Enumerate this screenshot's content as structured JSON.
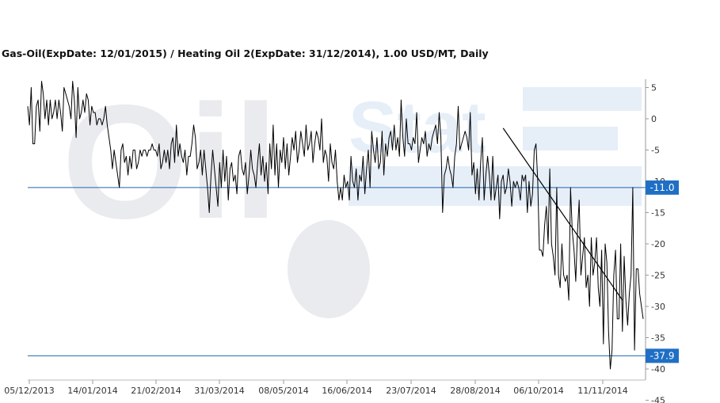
{
  "header": {
    "title": "Gas-Oil(ExpDate: 12/01/2015) / Heating Oil 2(ExpDate: 31/12/2014), 1.00 USD/MT, Daily"
  },
  "watermark": {
    "text_left": "Oil",
    "text_right": "Stat"
  },
  "chart_data": {
    "type": "line",
    "title": "Gas-Oil(ExpDate: 12/01/2015) / Heating Oil 2(ExpDate: 31/12/2014), 1.00 USD/MT, Daily",
    "xlabel": "",
    "ylabel": "",
    "x_ticks": [
      "05/12/2013",
      "14/01/2014",
      "21/02/2014",
      "31/03/2014",
      "08/05/2014",
      "16/06/2014",
      "23/07/2014",
      "28/08/2014",
      "06/10/2014",
      "11/11/2014"
    ],
    "y_ticks": [
      "5",
      "0",
      "-5",
      "-10",
      "-15",
      "-20",
      "-25",
      "-30",
      "-35",
      "-40",
      "-45"
    ],
    "ylim": [
      -45,
      7
    ],
    "grid": false,
    "series": [
      {
        "color": "#000000",
        "values": [
          2,
          -1,
          5,
          -4,
          -4,
          2,
          3,
          -2,
          6,
          4,
          0,
          3,
          -1,
          3,
          0,
          1,
          3,
          0,
          3,
          1,
          -2,
          5,
          4,
          3,
          2,
          0,
          6,
          3,
          -3,
          5,
          0,
          1,
          3,
          1,
          4,
          3,
          -1,
          2,
          1,
          1,
          -1,
          0,
          0,
          -1,
          0,
          2,
          -1,
          -3,
          -5,
          -8,
          -5,
          -7,
          -9,
          -11,
          -5,
          -4,
          -7,
          -6,
          -9,
          -6,
          -8,
          -5,
          -5,
          -8,
          -7,
          -5,
          -6,
          -5,
          -5,
          -6,
          -5,
          -5,
          -4,
          -5,
          -5,
          -6,
          -4,
          -8,
          -7,
          -5,
          -7,
          -5,
          -8,
          -4,
          -3,
          -7,
          -1,
          -6,
          -4,
          -6,
          -7,
          -5,
          -9,
          -6,
          -6,
          -4,
          -1,
          -3,
          -8,
          -7,
          -5,
          -9,
          -5,
          -8,
          -11,
          -15,
          -9,
          -5,
          -8,
          -11,
          -14,
          -7,
          -11,
          -5,
          -10,
          -6,
          -13,
          -8,
          -7,
          -10,
          -9,
          -12,
          -6,
          -5,
          -8,
          -9,
          -7,
          -12,
          -9,
          -5,
          -8,
          -9,
          -11,
          -7,
          -4,
          -9,
          -6,
          -10,
          -7,
          -12,
          -4,
          -8,
          -1,
          -9,
          -4,
          -11,
          -5,
          -7,
          -3,
          -8,
          -4,
          -9,
          -6,
          -3,
          -5,
          -2,
          -7,
          -5,
          -2,
          -4,
          -6,
          -1,
          -5,
          -4,
          -2,
          -7,
          -4,
          -2,
          -3,
          -5,
          0,
          -7,
          -5,
          -6,
          -10,
          -4,
          -7,
          -8,
          -5,
          -10,
          -13,
          -11,
          -13,
          -9,
          -11,
          -10,
          -13,
          -6,
          -10,
          -11,
          -8,
          -13,
          -9,
          -10,
          -6,
          -12,
          -8,
          -5,
          -11,
          -2,
          -5,
          -7,
          -3,
          -8,
          -7,
          -2,
          -9,
          -4,
          -6,
          -3,
          -2,
          -5,
          -1,
          -5,
          -3,
          -6,
          3,
          -3,
          -6,
          0,
          -4,
          -4,
          -5,
          -3,
          -4,
          1,
          -7,
          -5,
          -3,
          -4,
          -2,
          -6,
          -4,
          -5,
          -3,
          -2,
          -1,
          -4,
          1,
          -3,
          -15,
          -9,
          -8,
          -6,
          -8,
          -9,
          -11,
          -6,
          -4,
          2,
          -5,
          -4,
          -3,
          -2,
          -3,
          -5,
          1,
          -9,
          -7,
          -12,
          -8,
          -13,
          -7,
          -3,
          -13,
          -9,
          -6,
          -9,
          -13,
          -6,
          -13,
          -11,
          -9,
          -16,
          -10,
          -9,
          -12,
          -11,
          -8,
          -10,
          -14,
          -10,
          -11,
          -10,
          -11,
          -13,
          -9,
          -10,
          -9,
          -15,
          -10,
          -14,
          -12,
          -5,
          -4,
          -10,
          -21,
          -21,
          -22,
          -17,
          -14,
          -20,
          -8,
          -20,
          -22,
          -25,
          -11,
          -25,
          -27,
          -20,
          -25,
          -26,
          -25,
          -29,
          -11,
          -18,
          -21,
          -26,
          -18,
          -13,
          -25,
          -22,
          -19,
          -27,
          -25,
          -30,
          -19,
          -25,
          -23,
          -19,
          -27,
          -30,
          -21,
          -36,
          -20,
          -23,
          -34,
          -40,
          -37,
          -25,
          -21,
          -32,
          -32,
          -20,
          -34,
          -22,
          -29,
          -33,
          -28,
          -25,
          -11,
          -37,
          -24,
          -24,
          -28,
          -30,
          -32
        ],
        "trendline": {
          "start": {
            "x_index": 275,
            "y": -1.5
          },
          "end": {
            "x_index": 344,
            "y": -29
          }
        }
      }
    ],
    "reference_lines": [
      {
        "value": -11.0,
        "label": "-11.0",
        "color": "#1f67b1"
      },
      {
        "value": -37.9,
        "label": "-37.9",
        "color": "#1f67b1"
      }
    ]
  }
}
